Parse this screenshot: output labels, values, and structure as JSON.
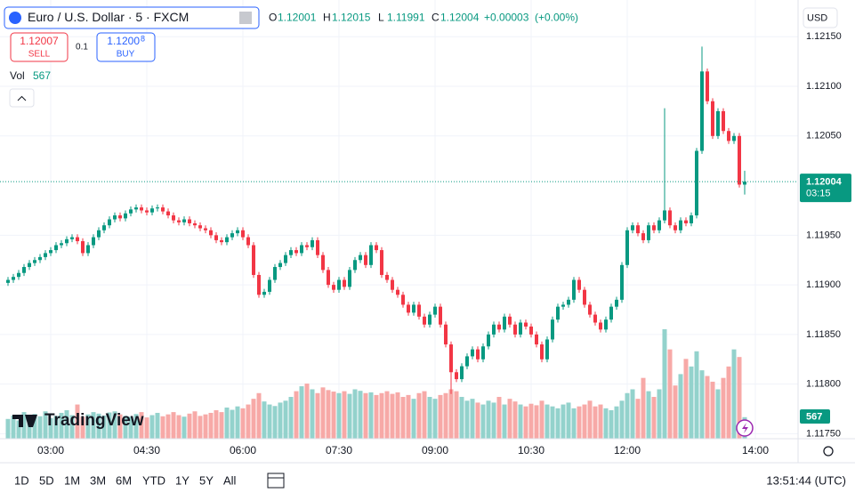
{
  "ui": {
    "symbol": "Euro / U.S. Dollar · 5 · FXCM",
    "ohlc_labels": [
      "O",
      "H",
      "L",
      "C"
    ],
    "change": "+0.00003",
    "change_pct": "(+0.00%)",
    "sell_price": "1.12007",
    "sell_label": "SELL",
    "spread": "0.1",
    "buy_main": "1.1200",
    "buy_pip": "8",
    "buy_label": "BUY",
    "vol_label": "Vol",
    "currency": "USD",
    "countdown": "03:15",
    "ranges": [
      "1D",
      "5D",
      "1M",
      "3M",
      "6M",
      "YTD",
      "1Y",
      "5Y",
      "All"
    ],
    "clock": "13:51:44 (UTC)",
    "logo": "TradingView"
  },
  "chart_data": {
    "type": "candlestick",
    "up_color": "#089981",
    "down_color": "#f23645",
    "volume_up_color": "#93d2cc",
    "volume_down_color": "#f7a9a7",
    "grid": true,
    "x": [
      140,
      145,
      150,
      155,
      160,
      165,
      170,
      175,
      180,
      185,
      190,
      195,
      200,
      205,
      210,
      215,
      220,
      225,
      230,
      235,
      240,
      245,
      250,
      255,
      260,
      265,
      270,
      275,
      280,
      285,
      290,
      295,
      300,
      305,
      310,
      315,
      320,
      325,
      330,
      335,
      340,
      345,
      350,
      355,
      360,
      365,
      370,
      375,
      380,
      385,
      390,
      395,
      400,
      405,
      410,
      415,
      420,
      425,
      430,
      435,
      440,
      445,
      450,
      455,
      460,
      465,
      470,
      475,
      480,
      485,
      490,
      495,
      500,
      505,
      510,
      515,
      520,
      525,
      530,
      535,
      540,
      545,
      550,
      555,
      560,
      565,
      570,
      575,
      580,
      585,
      590,
      595,
      600,
      605,
      610,
      615,
      620,
      625,
      630,
      635,
      640,
      645,
      650,
      655,
      660,
      665,
      670,
      675,
      680,
      685,
      690,
      695,
      700,
      705,
      710,
      715,
      720,
      725,
      730,
      735,
      740,
      745,
      750,
      755,
      760,
      765,
      770,
      775,
      780,
      785,
      790,
      795,
      800,
      805,
      810,
      815,
      820,
      825,
      830
    ],
    "open": [
      1.11902,
      1.11905,
      1.11908,
      1.11912,
      1.11918,
      1.11922,
      1.11925,
      1.11928,
      1.11932,
      1.11935,
      1.1194,
      1.11942,
      1.11946,
      1.11948,
      1.11944,
      1.11932,
      1.1194,
      1.11948,
      1.11955,
      1.1196,
      1.11966,
      1.1197,
      1.11967,
      1.11972,
      1.11976,
      1.11978,
      1.11975,
      1.11973,
      1.11977,
      1.11978,
      1.11974,
      1.1197,
      1.11965,
      1.11963,
      1.11966,
      1.11962,
      1.1196,
      1.11957,
      1.11955,
      1.1195,
      1.11945,
      1.11943,
      1.11948,
      1.11952,
      1.11955,
      1.11948,
      1.1194,
      1.1191,
      1.1189,
      1.11893,
      1.11905,
      1.11918,
      1.11922,
      1.1193,
      1.11935,
      1.11932,
      1.1194,
      1.11938,
      1.11945,
      1.1193,
      1.11915,
      1.119,
      1.11895,
      1.11905,
      1.11898,
      1.11915,
      1.11925,
      1.1193,
      1.1192,
      1.1194,
      1.11935,
      1.1191,
      1.11905,
      1.11895,
      1.1189,
      1.1188,
      1.11872,
      1.1188,
      1.11868,
      1.1186,
      1.1187,
      1.11878,
      1.1186,
      1.1184,
      1.11812,
      1.11805,
      1.11818,
      1.11828,
      1.11835,
      1.11825,
      1.11838,
      1.1185,
      1.1186,
      1.11855,
      1.11868,
      1.1186,
      1.1185,
      1.11862,
      1.11858,
      1.1185,
      1.1184,
      1.11825,
      1.11845,
      1.11865,
      1.11878,
      1.1188,
      1.11885,
      1.11905,
      1.11895,
      1.1188,
      1.1187,
      1.11862,
      1.11855,
      1.11865,
      1.11878,
      1.11885,
      1.1192,
      1.11955,
      1.1196,
      1.11952,
      1.11945,
      1.1196,
      1.11955,
      1.11965,
      1.11975,
      1.1196,
      1.11955,
      1.11965,
      1.11962,
      1.1197,
      1.12035,
      1.12115,
      1.12085,
      1.1205,
      1.12075,
      1.12055,
      1.12045,
      1.1205,
      1.12001
    ],
    "high": [
      1.11908,
      1.11911,
      1.11915,
      1.11921,
      1.11925,
      1.11928,
      1.11931,
      1.11935,
      1.11938,
      1.11943,
      1.11945,
      1.11949,
      1.11951,
      1.11951,
      1.11947,
      1.11943,
      1.11951,
      1.11958,
      1.11963,
      1.11969,
      1.11973,
      1.11973,
      1.11975,
      1.11979,
      1.11981,
      1.11981,
      1.11978,
      1.1198,
      1.11981,
      1.11981,
      1.11977,
      1.11973,
      1.11968,
      1.11969,
      1.11969,
      1.11965,
      1.11963,
      1.1196,
      1.11958,
      1.11953,
      1.11948,
      1.11951,
      1.11955,
      1.11958,
      1.11958,
      1.11951,
      1.11943,
      1.11913,
      1.11896,
      1.11908,
      1.11921,
      1.11925,
      1.11933,
      1.11938,
      1.11938,
      1.11943,
      1.11943,
      1.11948,
      1.11948,
      1.11933,
      1.11918,
      1.11903,
      1.11908,
      1.11908,
      1.11918,
      1.11928,
      1.11933,
      1.11933,
      1.11943,
      1.11943,
      1.11938,
      1.11913,
      1.11908,
      1.11898,
      1.11893,
      1.11883,
      1.11883,
      1.11883,
      1.11871,
      1.11873,
      1.11881,
      1.11881,
      1.11863,
      1.11843,
      1.11815,
      1.11821,
      1.11831,
      1.11838,
      1.11838,
      1.11841,
      1.11853,
      1.11863,
      1.11863,
      1.11871,
      1.11871,
      1.11863,
      1.11865,
      1.11865,
      1.11861,
      1.11853,
      1.11843,
      1.11848,
      1.11868,
      1.11881,
      1.11883,
      1.11888,
      1.11908,
      1.11908,
      1.11898,
      1.11883,
      1.11873,
      1.11865,
      1.11868,
      1.11881,
      1.11888,
      1.11923,
      1.11958,
      1.11963,
      1.11963,
      1.11955,
      1.11963,
      1.11963,
      1.11968,
      1.12078,
      1.11978,
      1.11963,
      1.11968,
      1.11968,
      1.11973,
      1.12038,
      1.1214,
      1.12118,
      1.12088,
      1.12078,
      1.12078,
      1.12058,
      1.12053,
      1.12053,
      1.12015
    ],
    "low": [
      1.11899,
      1.11902,
      1.11905,
      1.11909,
      1.11915,
      1.11919,
      1.11922,
      1.11925,
      1.11929,
      1.11932,
      1.11937,
      1.11939,
      1.11943,
      1.11941,
      1.11929,
      1.11929,
      1.11937,
      1.11945,
      1.11952,
      1.11957,
      1.11963,
      1.11964,
      1.11964,
      1.11969,
      1.11973,
      1.11972,
      1.1197,
      1.1197,
      1.11974,
      1.11971,
      1.11967,
      1.11962,
      1.1196,
      1.1196,
      1.11959,
      1.11957,
      1.11954,
      1.11952,
      1.11947,
      1.11942,
      1.1194,
      1.1194,
      1.11945,
      1.11949,
      1.11945,
      1.11937,
      1.11907,
      1.11887,
      1.11887,
      1.1189,
      1.11902,
      1.11915,
      1.11919,
      1.11927,
      1.11929,
      1.11929,
      1.11935,
      1.11935,
      1.11927,
      1.11912,
      1.11897,
      1.11892,
      1.11892,
      1.11895,
      1.11895,
      1.11912,
      1.11922,
      1.11917,
      1.11917,
      1.11932,
      1.11907,
      1.11902,
      1.11892,
      1.11887,
      1.11877,
      1.11869,
      1.11869,
      1.11865,
      1.11857,
      1.11857,
      1.11867,
      1.11857,
      1.11837,
      1.1179,
      1.11802,
      1.11802,
      1.11815,
      1.11825,
      1.11822,
      1.11822,
      1.11835,
      1.11847,
      1.11852,
      1.11852,
      1.11857,
      1.11847,
      1.11847,
      1.11855,
      1.11847,
      1.11837,
      1.11822,
      1.11822,
      1.11842,
      1.11862,
      1.11875,
      1.11877,
      1.11882,
      1.11892,
      1.11877,
      1.11867,
      1.11859,
      1.11852,
      1.11852,
      1.11862,
      1.11875,
      1.11882,
      1.11917,
      1.11952,
      1.11949,
      1.11942,
      1.11942,
      1.11952,
      1.11952,
      1.11962,
      1.11957,
      1.11952,
      1.11952,
      1.11959,
      1.11959,
      1.11967,
      1.12032,
      1.12082,
      1.12047,
      1.12047,
      1.12052,
      1.12042,
      1.12042,
      1.11998,
      1.11991
    ],
    "close": [
      1.11905,
      1.11908,
      1.11912,
      1.11918,
      1.11922,
      1.11925,
      1.11928,
      1.11932,
      1.11935,
      1.1194,
      1.11942,
      1.11946,
      1.11948,
      1.11944,
      1.11932,
      1.1194,
      1.11948,
      1.11955,
      1.1196,
      1.11966,
      1.1197,
      1.11967,
      1.11972,
      1.11976,
      1.11978,
      1.11975,
      1.11973,
      1.11977,
      1.11978,
      1.11974,
      1.1197,
      1.11965,
      1.11963,
      1.11966,
      1.11962,
      1.1196,
      1.11957,
      1.11955,
      1.1195,
      1.11945,
      1.11943,
      1.11948,
      1.11952,
      1.11955,
      1.11948,
      1.1194,
      1.1191,
      1.1189,
      1.11893,
      1.11905,
      1.11918,
      1.11922,
      1.1193,
      1.11935,
      1.11932,
      1.1194,
      1.11938,
      1.11945,
      1.1193,
      1.11915,
      1.119,
      1.11895,
      1.11905,
      1.11898,
      1.11915,
      1.11925,
      1.1193,
      1.1192,
      1.1194,
      1.11935,
      1.1191,
      1.11905,
      1.11895,
      1.1189,
      1.1188,
      1.11872,
      1.1188,
      1.11868,
      1.1186,
      1.1187,
      1.11878,
      1.1186,
      1.1184,
      1.11812,
      1.11805,
      1.11818,
      1.11828,
      1.11835,
      1.11825,
      1.11838,
      1.1185,
      1.1186,
      1.11855,
      1.11868,
      1.1186,
      1.1185,
      1.11862,
      1.11858,
      1.1185,
      1.1184,
      1.11825,
      1.11845,
      1.11865,
      1.11878,
      1.1188,
      1.11885,
      1.11905,
      1.11895,
      1.1188,
      1.1187,
      1.11862,
      1.11855,
      1.11865,
      1.11878,
      1.11885,
      1.1192,
      1.11955,
      1.1196,
      1.11952,
      1.11945,
      1.1196,
      1.11955,
      1.11965,
      1.11975,
      1.1196,
      1.11955,
      1.11965,
      1.11962,
      1.1197,
      1.12035,
      1.12115,
      1.12085,
      1.1205,
      1.12075,
      1.12055,
      1.12045,
      1.1205,
      1.12001,
      1.12004
    ],
    "volume": [
      520,
      610,
      480,
      700,
      560,
      650,
      590,
      720,
      540,
      600,
      680,
      750,
      620,
      900,
      580,
      640,
      700,
      660,
      610,
      690,
      720,
      640,
      600,
      580,
      650,
      700,
      560,
      620,
      680,
      590,
      640,
      700,
      620,
      580,
      660,
      720,
      600,
      640,
      680,
      750,
      700,
      820,
      760,
      850,
      800,
      900,
      1050,
      1200,
      980,
      900,
      860,
      950,
      1000,
      1100,
      1250,
      1380,
      1450,
      1300,
      1200,
      1350,
      1280,
      1240,
      1200,
      1250,
      1180,
      1300,
      1260,
      1200,
      1220,
      1150,
      1200,
      1250,
      1180,
      1220,
      1100,
      1150,
      1050,
      1200,
      1250,
      1100,
      1050,
      1150,
      1200,
      1300,
      1250,
      1100,
      1000,
      1050,
      950,
      900,
      1000,
      950,
      1100,
      900,
      1050,
      980,
      900,
      850,
      920,
      880,
      1000,
      900,
      850,
      800,
      900,
      950,
      800,
      850,
      900,
      1000,
      850,
      900,
      800,
      750,
      850,
      1000,
      1200,
      1300,
      1050,
      1600,
      1250,
      1100,
      1300,
      2880,
      2350,
      1400,
      1700,
      2100,
      1900,
      2300,
      1800,
      1650,
      1500,
      1300,
      1600,
      1900,
      2350,
      2150,
      567
    ],
    "xlim": [
      132.5,
      880
    ],
    "xticks": [
      {
        "value": 180,
        "label": "03:00"
      },
      {
        "value": 270,
        "label": "04:30"
      },
      {
        "value": 360,
        "label": "06:00"
      },
      {
        "value": 450,
        "label": "07:30"
      },
      {
        "value": 540,
        "label": "09:00"
      },
      {
        "value": 630,
        "label": "10:30"
      },
      {
        "value": 720,
        "label": "12:00"
      },
      {
        "value": 840,
        "label": "14:00"
      }
    ],
    "ylim": [
      1.11745,
      1.12187
    ],
    "yticks": [
      {
        "value": 1.1175,
        "label": "1.11750"
      },
      {
        "value": 1.118,
        "label": "1.11800"
      },
      {
        "value": 1.1185,
        "label": "1.11850"
      },
      {
        "value": 1.119,
        "label": "1.11900"
      },
      {
        "value": 1.1195,
        "label": "1.11950"
      },
      {
        "value": 1.1205,
        "label": "1.12050"
      },
      {
        "value": 1.121,
        "label": "1.12100"
      },
      {
        "value": 1.1215,
        "label": "1.12150"
      }
    ]
  }
}
